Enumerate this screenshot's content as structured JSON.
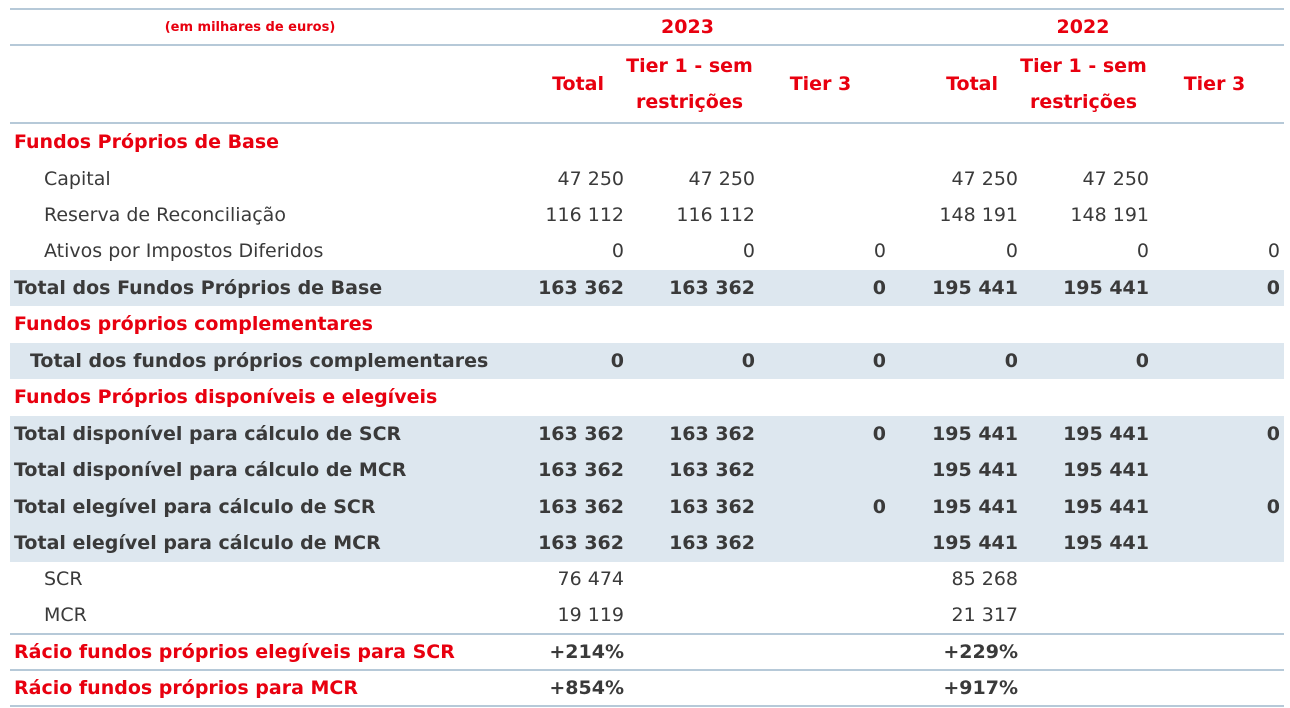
{
  "header": {
    "units_note": "(em milhares de euros)",
    "year_a": "2023",
    "year_b": "2022",
    "col_total": "Total",
    "col_tier1_line1": "Tier 1 - sem",
    "col_tier1_line2": "restrições",
    "col_tier3": "Tier 3"
  },
  "sections": {
    "base": "Fundos Próprios de Base",
    "complementares": "Fundos próprios complementares",
    "disponiveis": "Fundos Próprios disponíveis e elegíveis"
  },
  "rows": {
    "capital": {
      "label": "Capital",
      "v": [
        "47 250",
        "47 250",
        "",
        "47 250",
        "47 250",
        ""
      ]
    },
    "reserva": {
      "label": "Reserva de Reconciliação",
      "v": [
        "116 112",
        "116 112",
        "",
        "148 191",
        "148 191",
        ""
      ]
    },
    "ativos": {
      "label": "Ativos por Impostos Diferidos",
      "v": [
        "0",
        "0",
        "0",
        "0",
        "0",
        "0"
      ]
    },
    "total_base": {
      "label": "Total dos Fundos Próprios de Base",
      "v": [
        "163 362",
        "163 362",
        "0",
        "195 441",
        "195 441",
        "0"
      ]
    },
    "total_compl": {
      "label": "Total dos fundos próprios complementares",
      "v": [
        "0",
        "0",
        "0",
        "0",
        "0",
        ""
      ]
    },
    "disp_scr": {
      "label": "Total disponível para cálculo de SCR",
      "v": [
        "163 362",
        "163 362",
        "0",
        "195 441",
        "195 441",
        "0"
      ]
    },
    "disp_mcr": {
      "label": "Total disponível para cálculo de MCR",
      "v": [
        "163 362",
        "163 362",
        "",
        "195 441",
        "195 441",
        ""
      ]
    },
    "eleg_scr": {
      "label": "Total elegível para cálculo de SCR",
      "v": [
        "163 362",
        "163 362",
        "0",
        "195 441",
        "195 441",
        "0"
      ]
    },
    "eleg_mcr": {
      "label": "Total elegível para cálculo de MCR",
      "v": [
        "163 362",
        "163 362",
        "",
        "195 441",
        "195 441",
        ""
      ]
    },
    "scr": {
      "label": "SCR",
      "v": [
        "76 474",
        "",
        "",
        "85 268",
        "",
        ""
      ]
    },
    "mcr": {
      "label": "MCR",
      "v": [
        "19 119",
        "",
        "",
        "21 317",
        "",
        ""
      ]
    },
    "racio_scr": {
      "label": "Rácio fundos próprios elegíveis para SCR",
      "v": [
        "+214%",
        "",
        "",
        "+229%",
        "",
        ""
      ]
    },
    "racio_mcr": {
      "label": "Rácio fundos próprios para MCR",
      "v": [
        "+854%",
        "",
        "",
        "+917%",
        "",
        ""
      ]
    }
  }
}
